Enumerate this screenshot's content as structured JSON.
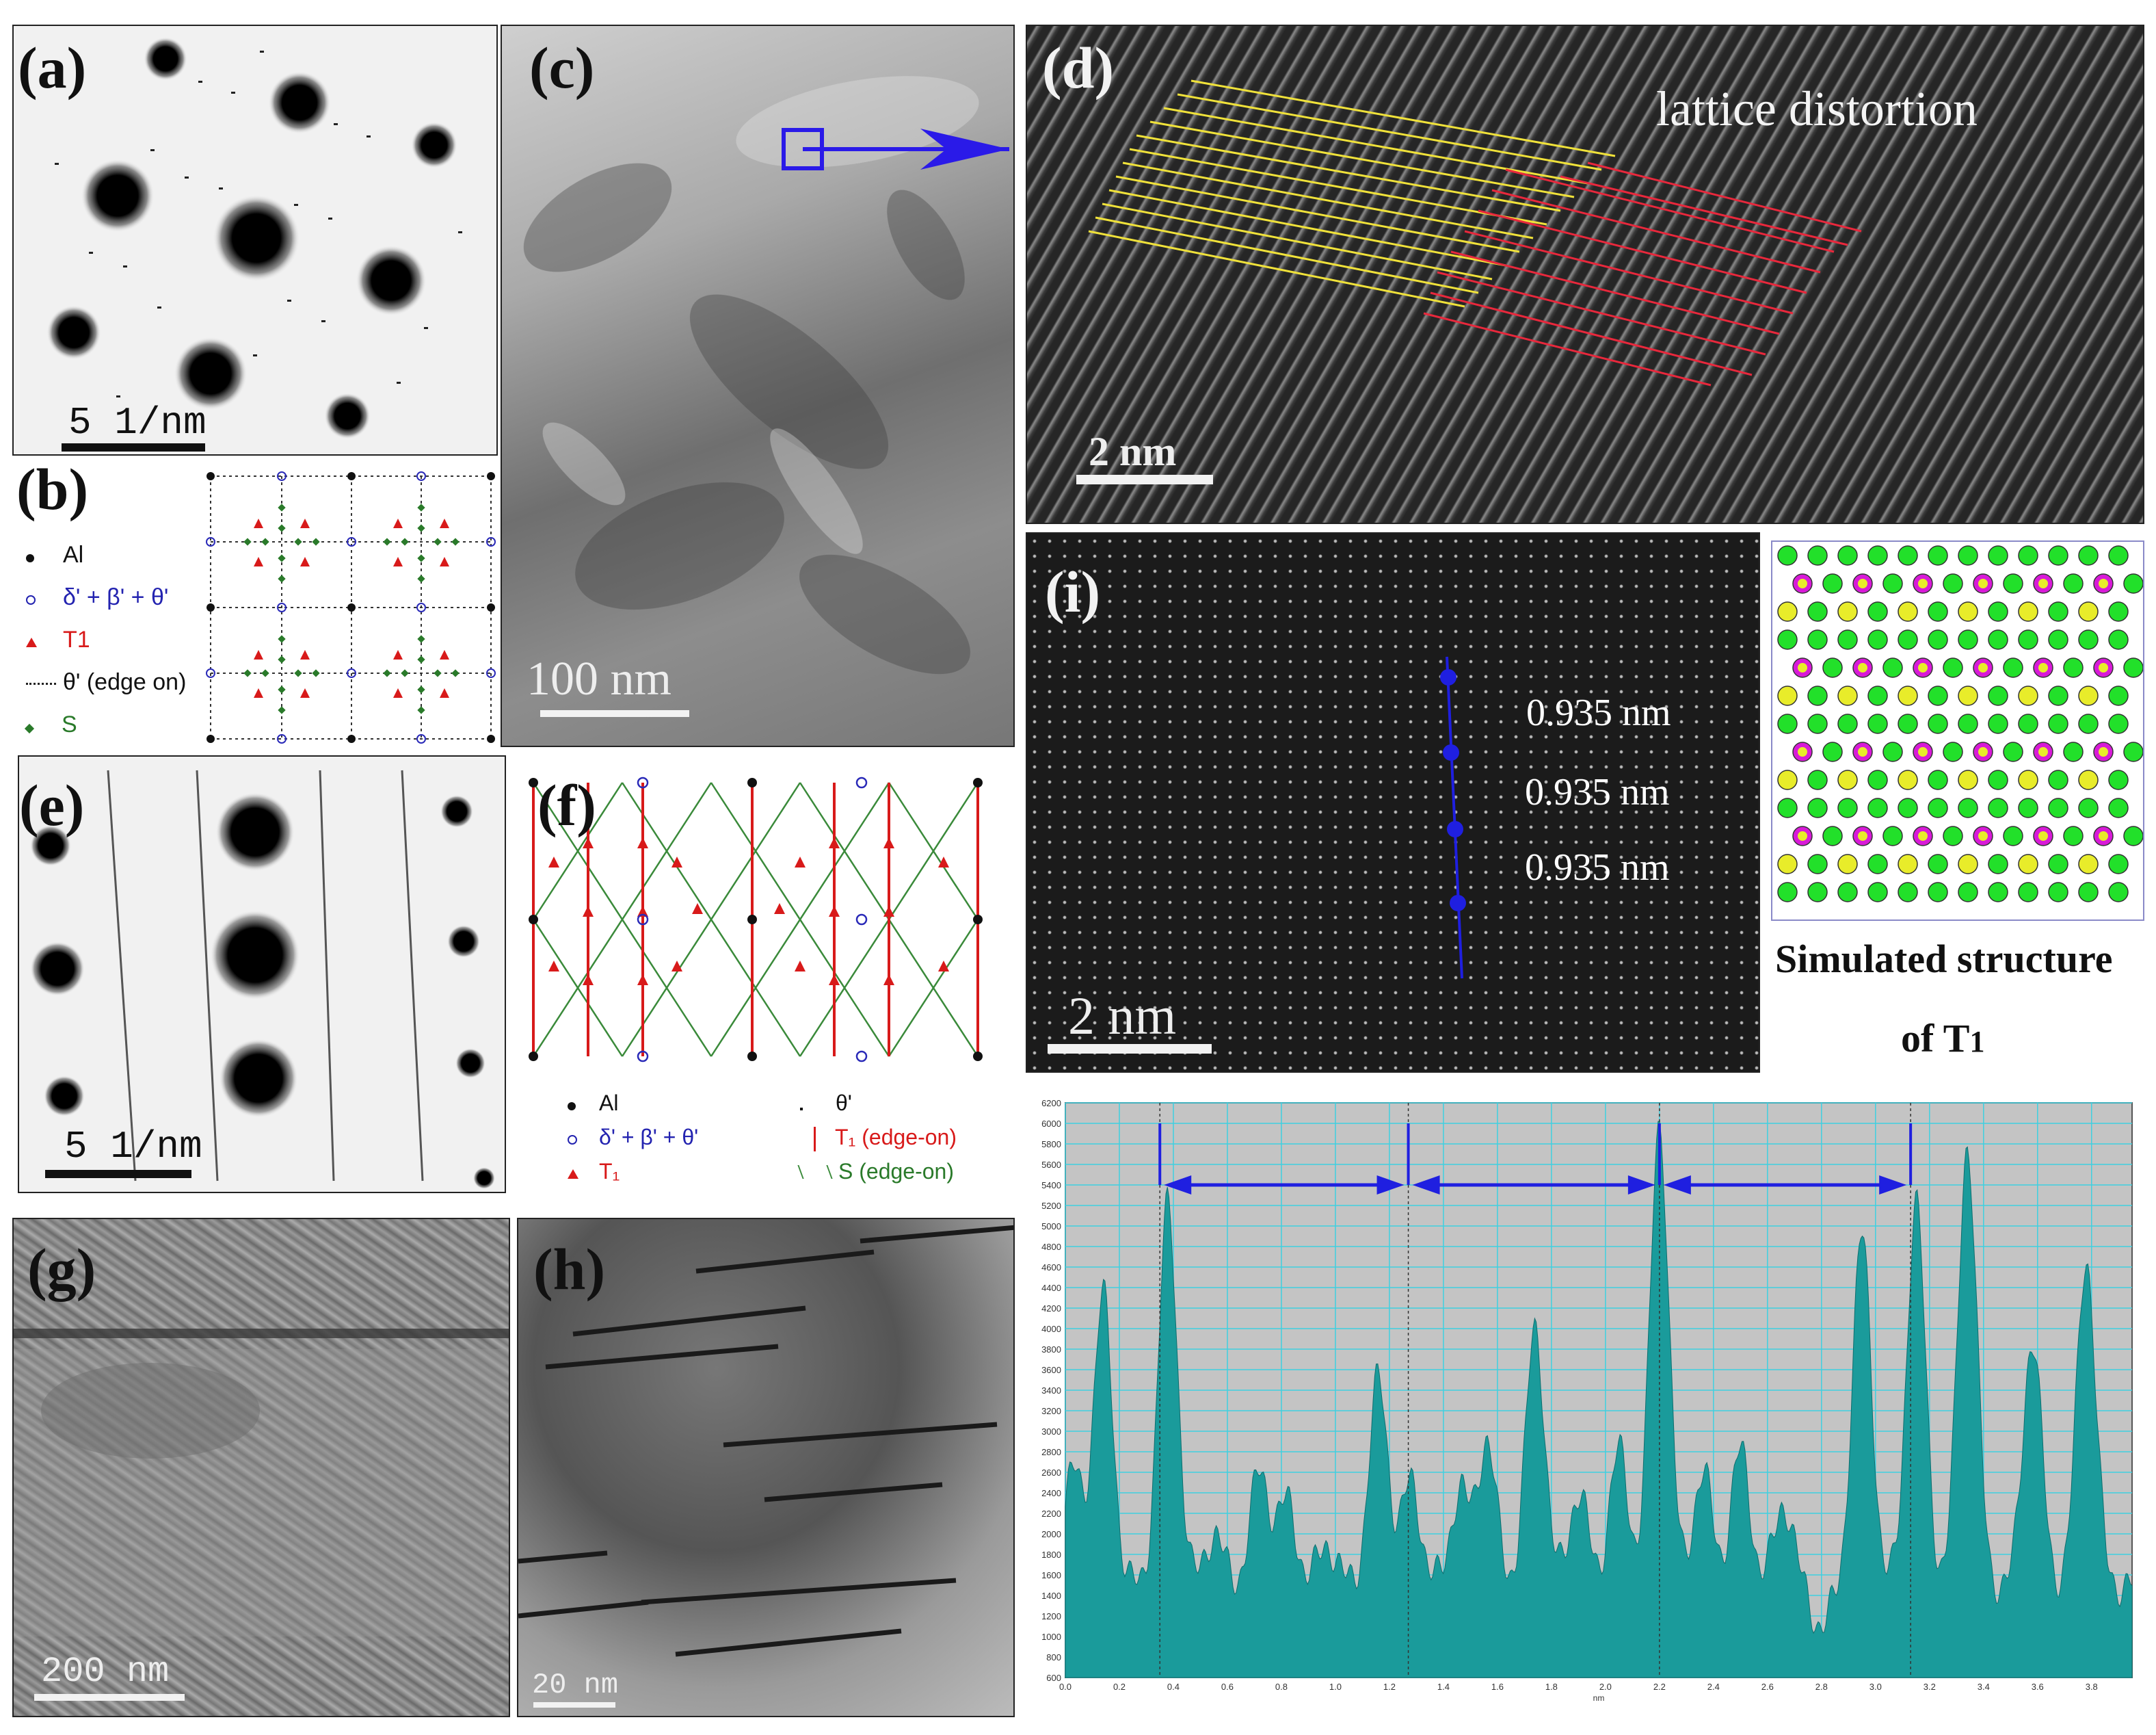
{
  "panels": {
    "a": {
      "label": "(a)",
      "scale": "5 1/nm"
    },
    "b": {
      "label": "(b)",
      "legend": [
        "Al",
        "δ' + β' + θ'",
        "T1",
        "θ' (edge on)",
        "S"
      ]
    },
    "c": {
      "label": "(c)",
      "scale": "100 nm"
    },
    "d": {
      "label": "(d)",
      "scale": "2 nm",
      "annotation": "lattice distortion"
    },
    "e": {
      "label": "(e)",
      "scale": "5 1/nm"
    },
    "f": {
      "label": "(f)",
      "legend_left": [
        "Al",
        "δ' + β' + θ'",
        "T₁"
      ],
      "legend_right": [
        "θ'",
        "T₁ (edge-on)",
        "S (edge-on)"
      ]
    },
    "g": {
      "label": "(g)",
      "scale": "200 nm"
    },
    "h": {
      "label": "(h)",
      "scale": "20 nm"
    },
    "i": {
      "label": "(i)",
      "scale": "2 nm",
      "spacings": [
        "0.935 nm",
        "0.935 nm",
        "0.935 nm"
      ]
    },
    "sim": {
      "caption_line1": "Simulated structure",
      "caption_line2": "of T",
      "caption_sub": "1"
    }
  },
  "chart_data": {
    "type": "area",
    "xlabel": "nm",
    "x_ticks": [
      "0.0",
      "0.2",
      "0.4",
      "0.6",
      "0.8",
      "1.0",
      "1.2",
      "1.4",
      "1.6",
      "1.8",
      "2.0",
      "2.2",
      "2.4",
      "2.6",
      "2.8",
      "3.0",
      "3.2",
      "3.4",
      "3.6",
      "3.8"
    ],
    "y_ticks": [
      "600",
      "800",
      "1000",
      "1200",
      "1400",
      "1600",
      "1800",
      "2000",
      "2200",
      "2400",
      "2600",
      "2800",
      "3000",
      "3200",
      "3400",
      "3600",
      "3800",
      "4000",
      "4200",
      "4400",
      "4600",
      "4800",
      "5000",
      "5200",
      "5400",
      "5600",
      "5800",
      "6000",
      "6200"
    ],
    "xlim": [
      0,
      3.95
    ],
    "ylim": [
      600,
      6200
    ],
    "peaks": [
      {
        "x": 0.03,
        "y": 2600
      },
      {
        "x": 0.14,
        "y": 4300
      },
      {
        "x": 0.38,
        "y": 5200
      },
      {
        "x": 0.55,
        "y": 2000
      },
      {
        "x": 0.72,
        "y": 2600
      },
      {
        "x": 0.82,
        "y": 2300
      },
      {
        "x": 0.97,
        "y": 1900
      },
      {
        "x": 1.16,
        "y": 3500
      },
      {
        "x": 1.28,
        "y": 2500
      },
      {
        "x": 1.46,
        "y": 2400
      },
      {
        "x": 1.56,
        "y": 2900
      },
      {
        "x": 1.74,
        "y": 4000
      },
      {
        "x": 1.9,
        "y": 2400
      },
      {
        "x": 2.05,
        "y": 2800
      },
      {
        "x": 2.2,
        "y": 6000
      },
      {
        "x": 2.36,
        "y": 2600
      },
      {
        "x": 2.5,
        "y": 2800
      },
      {
        "x": 2.66,
        "y": 2300
      },
      {
        "x": 2.8,
        "y": 1100
      },
      {
        "x": 2.95,
        "y": 4900
      },
      {
        "x": 3.15,
        "y": 5200
      },
      {
        "x": 3.34,
        "y": 5800
      },
      {
        "x": 3.58,
        "y": 3900
      },
      {
        "x": 3.78,
        "y": 4700
      }
    ],
    "markers_x": [
      0.35,
      1.27,
      2.2,
      3.13
    ],
    "accent_color": "#1a9b9b",
    "arrow_color": "#1f1fe0",
    "background": "#c4c4c4"
  },
  "colors": {
    "al_green": "#22e02a",
    "li_yellow": "#e8ec2a",
    "cu_magenta": "#d81ad8",
    "yellow_lines": "#f0e23a",
    "red_lines": "#e8283c",
    "blue_mark": "#2a1ae8",
    "red_marker": "#e41a1a",
    "green_line": "#3a8a3a"
  }
}
